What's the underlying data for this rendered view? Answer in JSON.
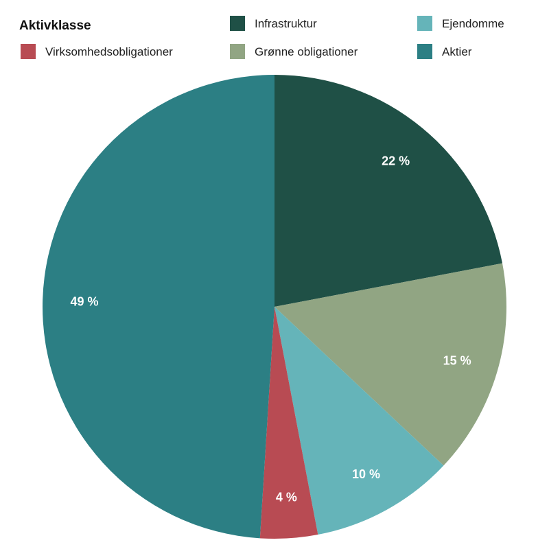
{
  "chart_data": {
    "type": "pie",
    "legend_title": "Aktivklasse",
    "legend_position": "top",
    "slices": [
      {
        "name": "Infrastruktur",
        "value": 22,
        "label": "22 %",
        "color": "#1f5046"
      },
      {
        "name": "Grønne obligationer",
        "value": 15,
        "label": "15 %",
        "color": "#91a583"
      },
      {
        "name": "Ejendomme",
        "value": 10,
        "label": "10 %",
        "color": "#65b4b9"
      },
      {
        "name": "Virksomhedsobligationer",
        "value": 4,
        "label": "4 %",
        "color": "#b84b53"
      },
      {
        "name": "Aktier",
        "value": 49,
        "label": "49 %",
        "color": "#2c7f84"
      }
    ],
    "legend_order": [
      "Infrastruktur",
      "Ejendomme",
      "Virksomhedsobligationer",
      "Grønne obligationer",
      "Aktier"
    ]
  }
}
